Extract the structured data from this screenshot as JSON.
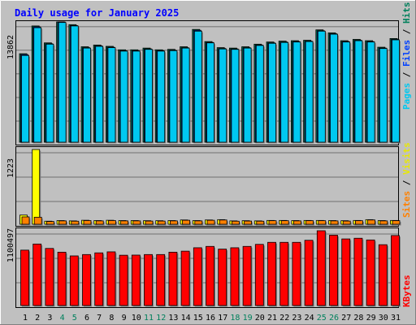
{
  "title": "Daily usage for January 2025",
  "colors": {
    "background": "#c0c0c0",
    "title": "#0000ff",
    "hits": "#00805c",
    "files": "#0040ff",
    "pages": "#00c8f0",
    "visits": "#ffff00",
    "sites": "#ff8000",
    "kbytes": "#ff0000",
    "weekend_label": "#00805c",
    "weekday_label": "#000000",
    "gridline": "#555555"
  },
  "panel_top": {
    "max_label": "13862",
    "legend": {
      "pages": "Pages",
      "files": "Files",
      "hits": "Hits",
      "sep1": " / ",
      "sep2": " / "
    }
  },
  "panel_mid": {
    "max_label": "1223",
    "legend": {
      "sites": "Sites",
      "visits": "Visits",
      "sep1": " / "
    }
  },
  "panel_bot": {
    "max_label": "1100497",
    "legend": {
      "kbytes": "KBytes"
    }
  },
  "chart_data": [
    {
      "type": "bar",
      "panel": "hits-files-pages",
      "categories": [
        "1",
        "2",
        "3",
        "4",
        "5",
        "6",
        "7",
        "8",
        "9",
        "10",
        "11",
        "12",
        "13",
        "14",
        "15",
        "16",
        "17",
        "18",
        "19",
        "20",
        "21",
        "22",
        "23",
        "24",
        "25",
        "26",
        "27",
        "28",
        "29",
        "30",
        "31"
      ],
      "weekend_days": [
        4,
        5,
        11,
        12,
        18,
        19,
        25,
        26
      ],
      "ylim": [
        0,
        13862
      ],
      "series": [
        {
          "name": "Hits",
          "values": [
            10200,
            13400,
            11450,
            13862,
            13550,
            11000,
            11200,
            11050,
            10650,
            10650,
            10850,
            10650,
            10700,
            11000,
            13000,
            11600,
            10900,
            10850,
            11000,
            11300,
            11550,
            11650,
            11700,
            11750,
            12950,
            12600,
            11700,
            11850,
            11700,
            10950,
            11950
          ]
        },
        {
          "name": "Files",
          "values": [
            10100,
            13300,
            11350,
            13862,
            13450,
            10900,
            11100,
            10950,
            10550,
            10550,
            10750,
            10550,
            10600,
            10900,
            12900,
            11500,
            10800,
            10750,
            10900,
            11200,
            11450,
            11550,
            11600,
            11650,
            12850,
            12500,
            11600,
            11750,
            11600,
            10850,
            11850
          ]
        },
        {
          "name": "Pages",
          "values": [
            10000,
            13200,
            11300,
            13800,
            13400,
            10850,
            11050,
            10900,
            10500,
            10500,
            10700,
            10500,
            10550,
            10850,
            12800,
            11450,
            10750,
            10700,
            10850,
            11150,
            11400,
            11500,
            11550,
            11600,
            12800,
            12450,
            11550,
            11700,
            11550,
            10800,
            11800
          ]
        }
      ]
    },
    {
      "type": "bar",
      "panel": "visits-sites",
      "categories": [
        "1",
        "2",
        "3",
        "4",
        "5",
        "6",
        "7",
        "8",
        "9",
        "10",
        "11",
        "12",
        "13",
        "14",
        "15",
        "16",
        "17",
        "18",
        "19",
        "20",
        "21",
        "22",
        "23",
        "24",
        "25",
        "26",
        "27",
        "28",
        "29",
        "30",
        "31"
      ],
      "ylim": [
        0,
        1223
      ],
      "series": [
        {
          "name": "Visits",
          "values": [
            150,
            1223,
            50,
            60,
            55,
            65,
            60,
            65,
            60,
            60,
            58,
            58,
            60,
            70,
            60,
            70,
            75,
            55,
            58,
            55,
            62,
            62,
            60,
            62,
            62,
            60,
            58,
            62,
            75,
            60,
            62
          ]
        },
        {
          "name": "Sites",
          "values": [
            120,
            115,
            45,
            55,
            50,
            60,
            55,
            60,
            55,
            55,
            52,
            52,
            55,
            65,
            55,
            65,
            70,
            50,
            52,
            50,
            58,
            58,
            55,
            58,
            58,
            55,
            52,
            58,
            70,
            55,
            58
          ]
        }
      ]
    },
    {
      "type": "bar",
      "panel": "kbytes",
      "categories": [
        "1",
        "2",
        "3",
        "4",
        "5",
        "6",
        "7",
        "8",
        "9",
        "10",
        "11",
        "12",
        "13",
        "14",
        "15",
        "16",
        "17",
        "18",
        "19",
        "20",
        "21",
        "22",
        "23",
        "24",
        "25",
        "26",
        "27",
        "28",
        "29",
        "30",
        "31"
      ],
      "ylim": [
        0,
        1100497
      ],
      "series": [
        {
          "name": "KBytes",
          "values": [
            815000,
            905000,
            840000,
            785000,
            730000,
            750000,
            775000,
            790000,
            740000,
            742000,
            750000,
            750000,
            785000,
            800000,
            850000,
            870000,
            830000,
            850000,
            870000,
            900000,
            930000,
            930000,
            930000,
            960000,
            1100497,
            1035000,
            980000,
            990000,
            965000,
            895000,
            1030000
          ]
        }
      ]
    }
  ]
}
